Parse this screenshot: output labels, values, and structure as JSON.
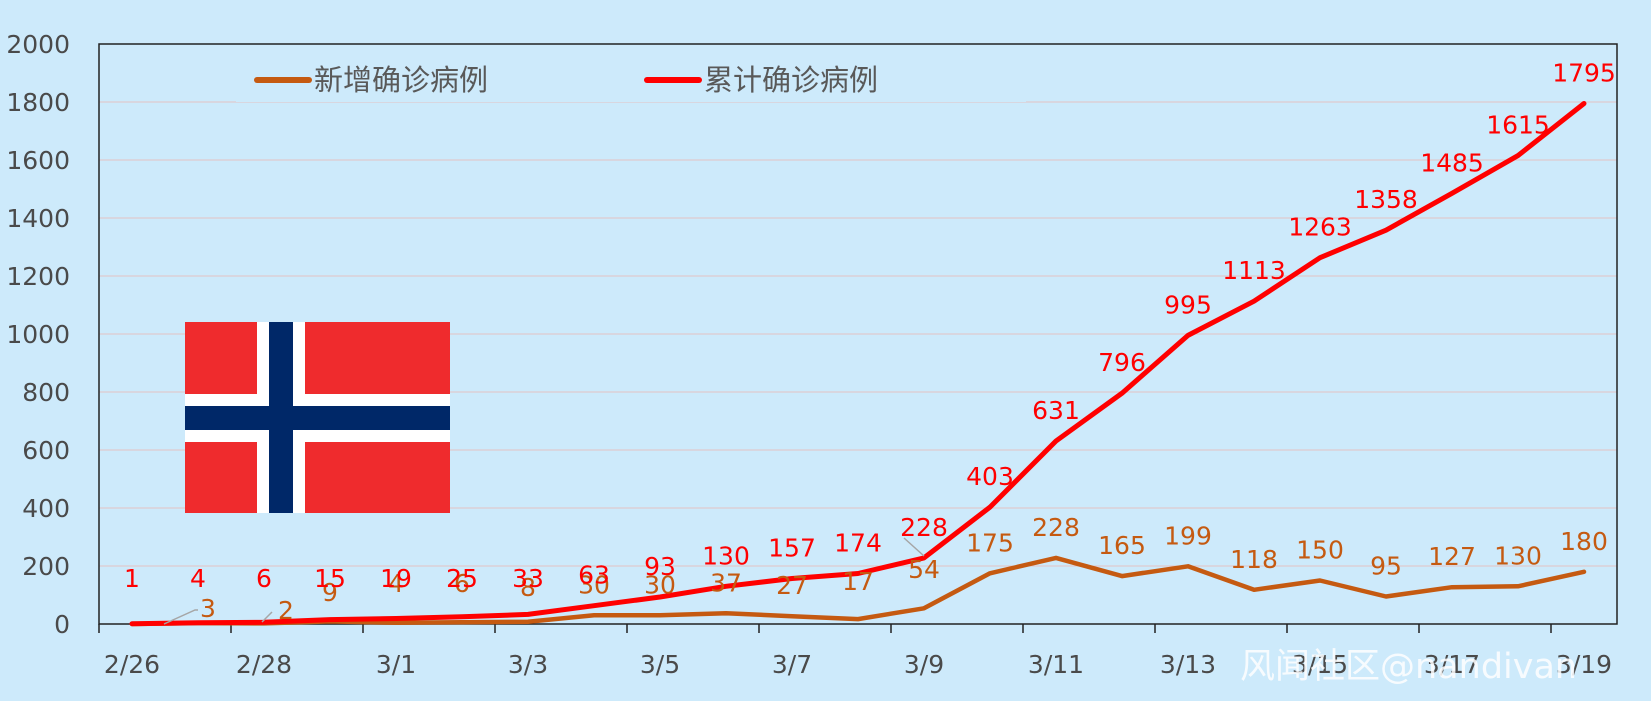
{
  "chart_data": {
    "type": "line",
    "title": "",
    "xlabel": "",
    "ylabel": "",
    "ylim": [
      0,
      2000
    ],
    "yticks": [
      0,
      200,
      400,
      600,
      800,
      1000,
      1200,
      1400,
      1600,
      1800,
      2000
    ],
    "categories": [
      "2/26",
      "2/27",
      "2/28",
      "2/29",
      "3/1",
      "3/2",
      "3/3",
      "3/4",
      "3/5",
      "3/6",
      "3/7",
      "3/8",
      "3/9",
      "3/10",
      "3/11",
      "3/12",
      "3/13",
      "3/14",
      "3/15",
      "3/16",
      "3/17",
      "3/18",
      "3/19"
    ],
    "xtick_labels": [
      "2/26",
      "2/28",
      "3/1",
      "3/3",
      "3/5",
      "3/7",
      "3/9",
      "3/11",
      "3/13",
      "3/15",
      "3/17",
      "3/19"
    ],
    "grid": true,
    "legend_position": "top-left",
    "series": [
      {
        "name": "新增确诊病例",
        "color": "#c55a11",
        "values": [
          0,
          3,
          2,
          9,
          4,
          6,
          8,
          30,
          30,
          37,
          27,
          17,
          54,
          175,
          228,
          165,
          199,
          118,
          150,
          95,
          127,
          130,
          180
        ]
      },
      {
        "name": "累计确诊病例",
        "color": "#ff0000",
        "values": [
          1,
          4,
          6,
          15,
          19,
          25,
          33,
          63,
          93,
          130,
          157,
          174,
          228,
          403,
          631,
          796,
          995,
          1113,
          1263,
          1358,
          1485,
          1615,
          1795
        ]
      }
    ],
    "data_labels": {
      "new": [
        "3",
        "2",
        "9",
        "4",
        "6",
        "8",
        "30",
        "30",
        "37",
        "27",
        "17",
        "54",
        "175",
        "228",
        "165",
        "199",
        "118",
        "150",
        "95",
        "127",
        "130",
        "180"
      ],
      "cumulative": [
        "1",
        "4",
        "6",
        "15",
        "19",
        "25",
        "33",
        "63",
        "93",
        "130",
        "157",
        "174",
        "228",
        "403",
        "631",
        "796",
        "995",
        "1113",
        "1263",
        "1358",
        "1485",
        "1615",
        "1795"
      ]
    }
  },
  "flag": {
    "icon": "norway-flag-icon",
    "colors": {
      "red": "#ef2b2d",
      "white": "#ffffff",
      "blue": "#002868"
    }
  },
  "watermark": "风闻社区@nandivan"
}
